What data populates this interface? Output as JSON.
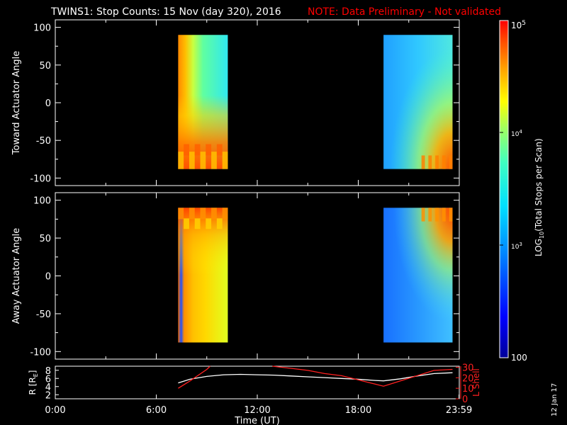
{
  "header": {
    "title": "TWINS1: Stop Counts: 15 Nov (day 320), 2016",
    "note": "NOTE: Data Preliminary - Not validated"
  },
  "date_stamp": "12 Jan 17",
  "colors": {
    "note": "#ff0000",
    "lshell": "#ff2020",
    "radius": "#ffffff",
    "frame": "#ffffff"
  },
  "chart_data": [
    {
      "id": "toward",
      "type": "heatmap",
      "ylabel": "Toward Actuator Angle",
      "ylim": [
        -110,
        110
      ],
      "yticks": [
        100,
        50,
        0,
        -50,
        -100
      ],
      "data_y_range": [
        -88,
        90
      ],
      "xlim": [
        0,
        24
      ],
      "segments": [
        {
          "x_start": 7.3,
          "x_end": 10.25,
          "description": "dense 10^3-10^4 counts, saturated near start and low angles"
        },
        {
          "x_start": 19.5,
          "x_end": 23.6,
          "description": "10^2-10^3 counts, increasing to 10^4 at low angles late"
        }
      ]
    },
    {
      "id": "away",
      "type": "heatmap",
      "ylabel": "Away Actuator Angle",
      "ylim": [
        -110,
        110
      ],
      "yticks": [
        100,
        50,
        0,
        -50,
        -100
      ],
      "data_y_range": [
        -88,
        90
      ],
      "xlim": [
        0,
        24
      ],
      "segments": [
        {
          "x_start": 7.3,
          "x_end": 10.25,
          "description": "10^3-10^4 counts, saturated near start and high angles"
        },
        {
          "x_start": 19.5,
          "x_end": 23.6,
          "description": "10^2-10^3 counts, increasing to 10^4 at high angles late"
        }
      ]
    },
    {
      "id": "orbit",
      "type": "line",
      "xlabel": "Time (UT)",
      "xticks": [
        "0:00",
        "6:00",
        "12:00",
        "18:00",
        "23:59"
      ],
      "xtick_values": [
        0,
        6,
        12,
        18,
        23.983
      ],
      "xlim": [
        0,
        24
      ],
      "ylabel": "R [R",
      "ylabel_sub": "E",
      "ylabel_end": "]",
      "y2label": "L Shell",
      "ylim": [
        1,
        9
      ],
      "yticks": [
        2,
        4,
        6,
        8
      ],
      "y2lim": [
        0,
        31
      ],
      "y2ticks": [
        0,
        10,
        20,
        30
      ],
      "series": [
        {
          "axis": "left",
          "x": [
            7.3,
            8.0,
            9.0,
            10.0,
            11.0,
            12.0,
            13.0,
            14.0,
            15.0,
            16.0,
            17.0,
            18.0,
            19.0,
            19.5,
            20.5,
            21.5,
            22.5,
            23.6
          ],
          "y": [
            4.9,
            5.8,
            6.5,
            6.9,
            7.0,
            6.9,
            6.8,
            6.6,
            6.4,
            6.2,
            6.0,
            5.8,
            5.5,
            5.4,
            5.9,
            6.6,
            7.2,
            7.4
          ]
        },
        {
          "axis": "right",
          "x": [
            7.3,
            8.0,
            9.0,
            9.2
          ],
          "y": [
            10,
            17,
            28,
            31
          ]
        },
        {
          "axis": "right",
          "x": [
            12.9,
            14.0,
            15.0,
            16.0,
            17.0,
            18.0,
            19.0,
            19.5,
            20.5,
            21.5,
            22.5,
            23.6
          ],
          "y": [
            31,
            29,
            27,
            24,
            22,
            18,
            14,
            12,
            17,
            22,
            27,
            28
          ]
        }
      ]
    }
  ],
  "colorbar": {
    "label_prefix": "LOG",
    "label_sub": "10",
    "label_suffix": "(Total Stops per Scan)",
    "tick_min": "100",
    "tick_1k_base": "10",
    "tick_1k_exp": "3",
    "tick_10k_base": "10",
    "tick_10k_exp": "4",
    "tick_max_base": "10",
    "tick_max_exp": "5"
  }
}
